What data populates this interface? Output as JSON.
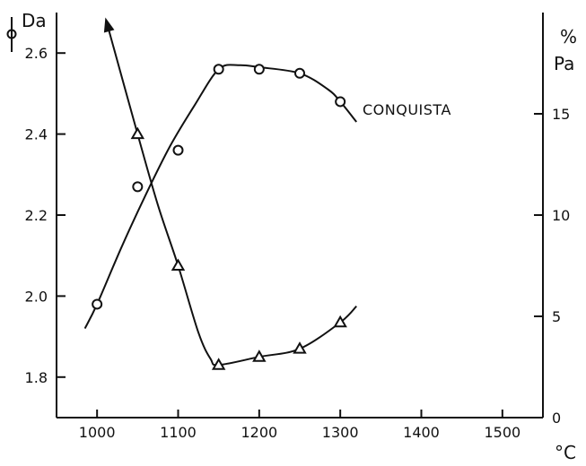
{
  "chart_data": {
    "type": "line",
    "x_axis": {
      "label": "°C",
      "lim": [
        950,
        1550
      ],
      "ticks": [
        1000,
        1100,
        1200,
        1300,
        1400,
        1500
      ]
    },
    "y_left": {
      "label": "Da",
      "lim": [
        1.7,
        2.7
      ],
      "ticks": [
        1.8,
        2.0,
        2.2,
        2.4,
        2.6
      ],
      "tick_labels": [
        "1.8",
        "2.0",
        "2.2",
        "2.4",
        "2.6"
      ]
    },
    "y_right": {
      "label_top": "%",
      "label": "Pa",
      "lim": [
        0,
        20
      ],
      "ticks": [
        0,
        5,
        10,
        15
      ],
      "tick_labels": [
        "0",
        "5",
        "10",
        "15"
      ]
    },
    "series": [
      {
        "marker": "circle",
        "axis": "left",
        "annotation": "CONQUISTA",
        "points": [
          {
            "x": 1000,
            "y": 1.98
          },
          {
            "x": 1050,
            "y": 2.27
          },
          {
            "x": 1100,
            "y": 2.36
          },
          {
            "x": 1150,
            "y": 2.56
          },
          {
            "x": 1200,
            "y": 2.56
          },
          {
            "x": 1250,
            "y": 2.55
          },
          {
            "x": 1300,
            "y": 2.48
          }
        ],
        "curve": [
          {
            "x": 985,
            "y": 1.92
          },
          {
            "x": 1000,
            "y": 1.98
          },
          {
            "x": 1030,
            "y": 2.12
          },
          {
            "x": 1060,
            "y": 2.25
          },
          {
            "x": 1090,
            "y": 2.37
          },
          {
            "x": 1120,
            "y": 2.47
          },
          {
            "x": 1150,
            "y": 2.56
          },
          {
            "x": 1175,
            "y": 2.57
          },
          {
            "x": 1200,
            "y": 2.565
          },
          {
            "x": 1250,
            "y": 2.55
          },
          {
            "x": 1285,
            "y": 2.51
          },
          {
            "x": 1300,
            "y": 2.48
          },
          {
            "x": 1320,
            "y": 2.43
          }
        ]
      },
      {
        "marker": "triangle",
        "axis": "right",
        "points": [
          {
            "x": 1050,
            "y": 14.0
          },
          {
            "x": 1100,
            "y": 7.5
          },
          {
            "x": 1150,
            "y": 2.6
          },
          {
            "x": 1200,
            "y": 3.0
          },
          {
            "x": 1250,
            "y": 3.4
          },
          {
            "x": 1300,
            "y": 4.7
          }
        ],
        "curve": [
          {
            "x": 1012,
            "y": 19.5
          },
          {
            "x": 1050,
            "y": 14.0
          },
          {
            "x": 1075,
            "y": 10.5
          },
          {
            "x": 1100,
            "y": 7.5
          },
          {
            "x": 1125,
            "y": 4.2
          },
          {
            "x": 1140,
            "y": 2.9
          },
          {
            "x": 1150,
            "y": 2.6
          },
          {
            "x": 1200,
            "y": 3.0
          },
          {
            "x": 1250,
            "y": 3.4
          },
          {
            "x": 1300,
            "y": 4.7
          },
          {
            "x": 1320,
            "y": 5.5
          }
        ],
        "arrow_end": true
      }
    ]
  }
}
